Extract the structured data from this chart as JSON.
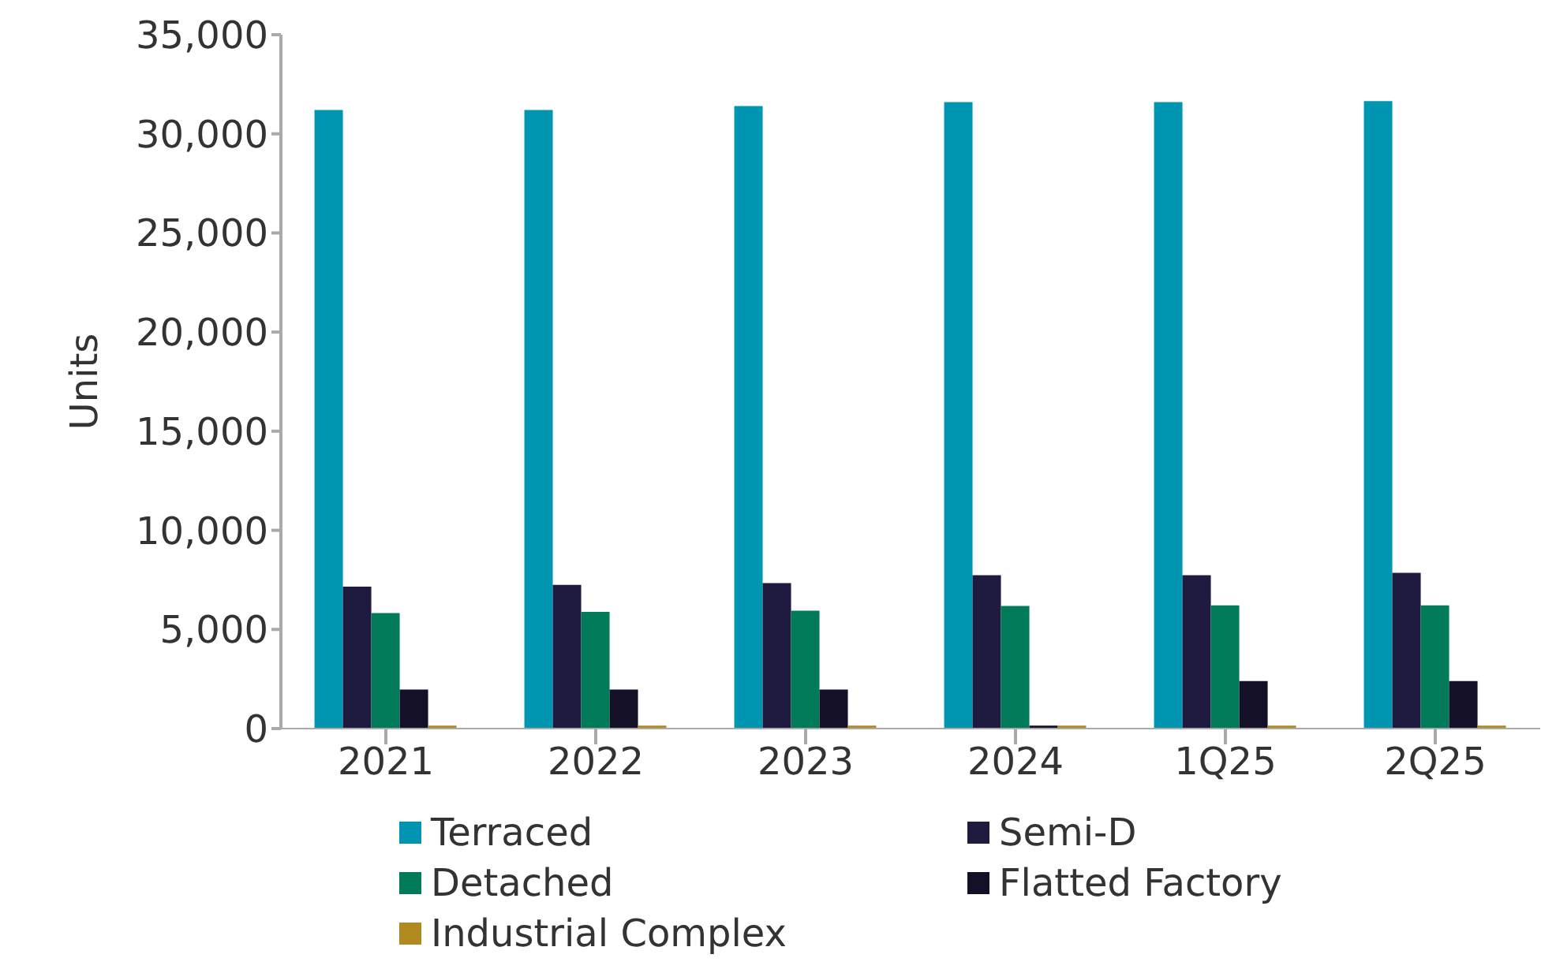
{
  "chart_data": {
    "type": "bar",
    "ylabel": "Units",
    "categories": [
      "2021",
      "2022",
      "2023",
      "2024",
      "1Q25",
      "2Q25"
    ],
    "series": [
      {
        "name": "Terraced",
        "color": "#0095b0",
        "values": [
          31200,
          31200,
          31400,
          31600,
          31600,
          31650
        ]
      },
      {
        "name": "Semi-D",
        "color": "#1e1a40",
        "values": [
          7160,
          7250,
          7340,
          7740,
          7740,
          7860
        ]
      },
      {
        "name": "Detached",
        "color": "#007a58",
        "values": [
          5830,
          5890,
          5950,
          6180,
          6210,
          6210
        ]
      },
      {
        "name": "Flatted Factory",
        "color": "#141028",
        "values": [
          1970,
          1970,
          1970,
          150,
          2400,
          2400
        ]
      },
      {
        "name": "Industrial Complex",
        "color": "#b08a20",
        "values": [
          150,
          150,
          150,
          150,
          150,
          150
        ]
      }
    ],
    "ylim": [
      0,
      35000
    ],
    "yticks": [
      0,
      {
        "value": 5000,
        "label": "5,000"
      },
      {
        "value": 10000,
        "label": "10,000"
      },
      {
        "value": 15000,
        "label": "15,000"
      },
      {
        "value": 20000,
        "label": "20,000"
      },
      {
        "value": 25000,
        "label": "25,000"
      },
      {
        "value": 30000,
        "label": "30,000"
      },
      {
        "value": 35000,
        "label": "35,000"
      }
    ],
    "grid": false,
    "legend": "bottom"
  }
}
